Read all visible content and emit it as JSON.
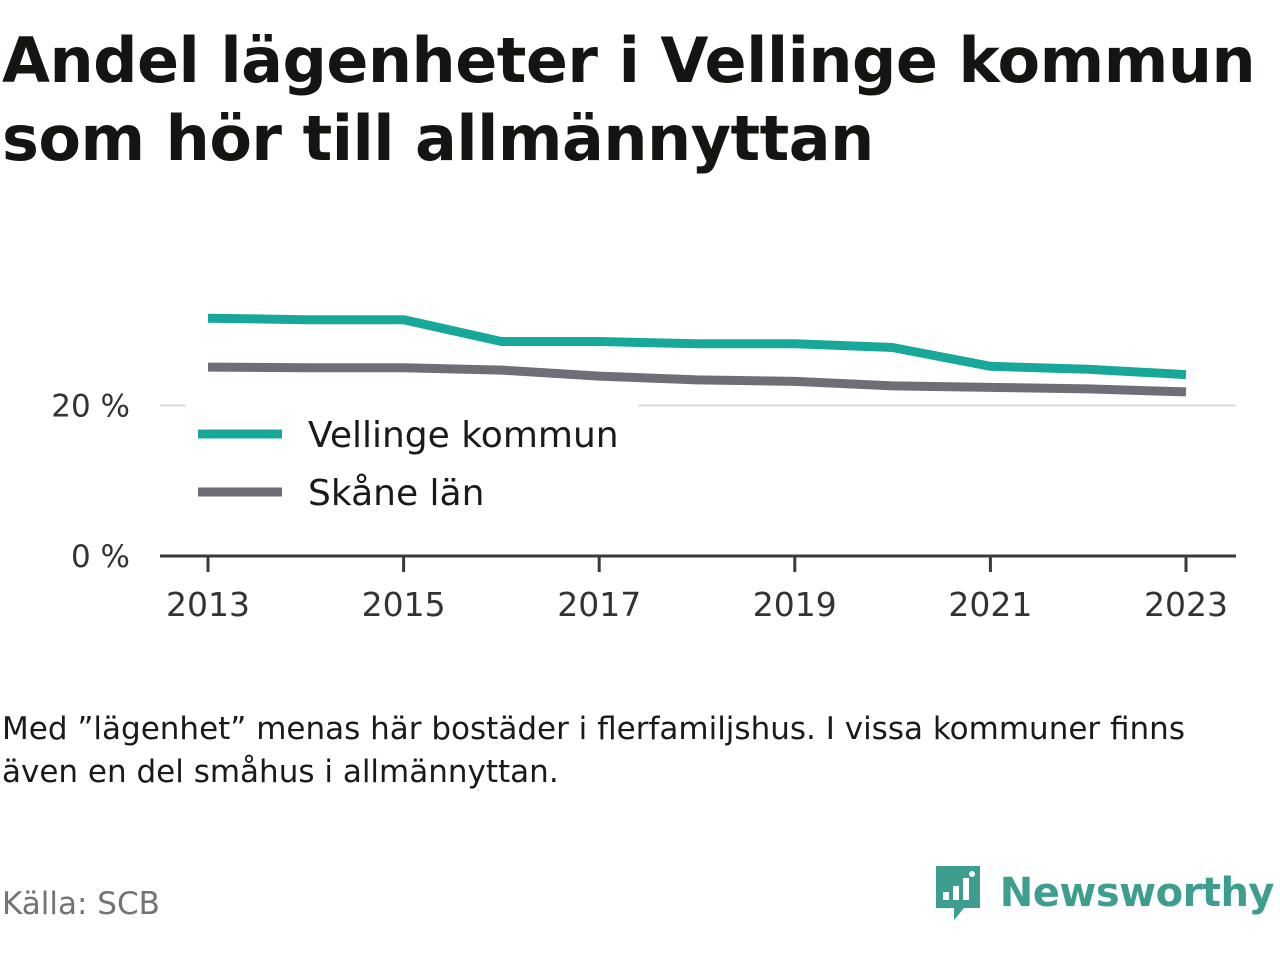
{
  "title": "Andel lägenheter i Vellinge kommun som hör till allmännyttan",
  "note": "Med ”lägenhet” menas här bostäder i flerfamiljshus. I vissa kommuner finns även en del småhus i allmännyttan.",
  "source": "Källa: SCB",
  "brand": {
    "name": "Newsworthy",
    "icon": "newsworthy-logo-icon",
    "color": "#3d9e90"
  },
  "chart_data": {
    "type": "line",
    "x": [
      2013,
      2014,
      2015,
      2016,
      2017,
      2018,
      2019,
      2020,
      2021,
      2022,
      2023
    ],
    "x_ticks": [
      2013,
      2015,
      2017,
      2019,
      2021,
      2023
    ],
    "y_ticks": [
      {
        "value": 0,
        "label": "0 %"
      },
      {
        "value": 20,
        "label": "20 %"
      }
    ],
    "ylim": [
      0,
      38
    ],
    "series": [
      {
        "name": "Vellinge kommun",
        "color": "#18a89a",
        "values": [
          31.6,
          31.4,
          31.4,
          28.5,
          28.5,
          28.2,
          28.2,
          27.7,
          25.2,
          24.8,
          24.1
        ]
      },
      {
        "name": "Skåne län",
        "color": "#6e6e76",
        "values": [
          25.1,
          25.0,
          25.0,
          24.7,
          23.9,
          23.4,
          23.2,
          22.6,
          22.4,
          22.2,
          21.8
        ]
      }
    ],
    "legend_position": "bottom-left"
  }
}
